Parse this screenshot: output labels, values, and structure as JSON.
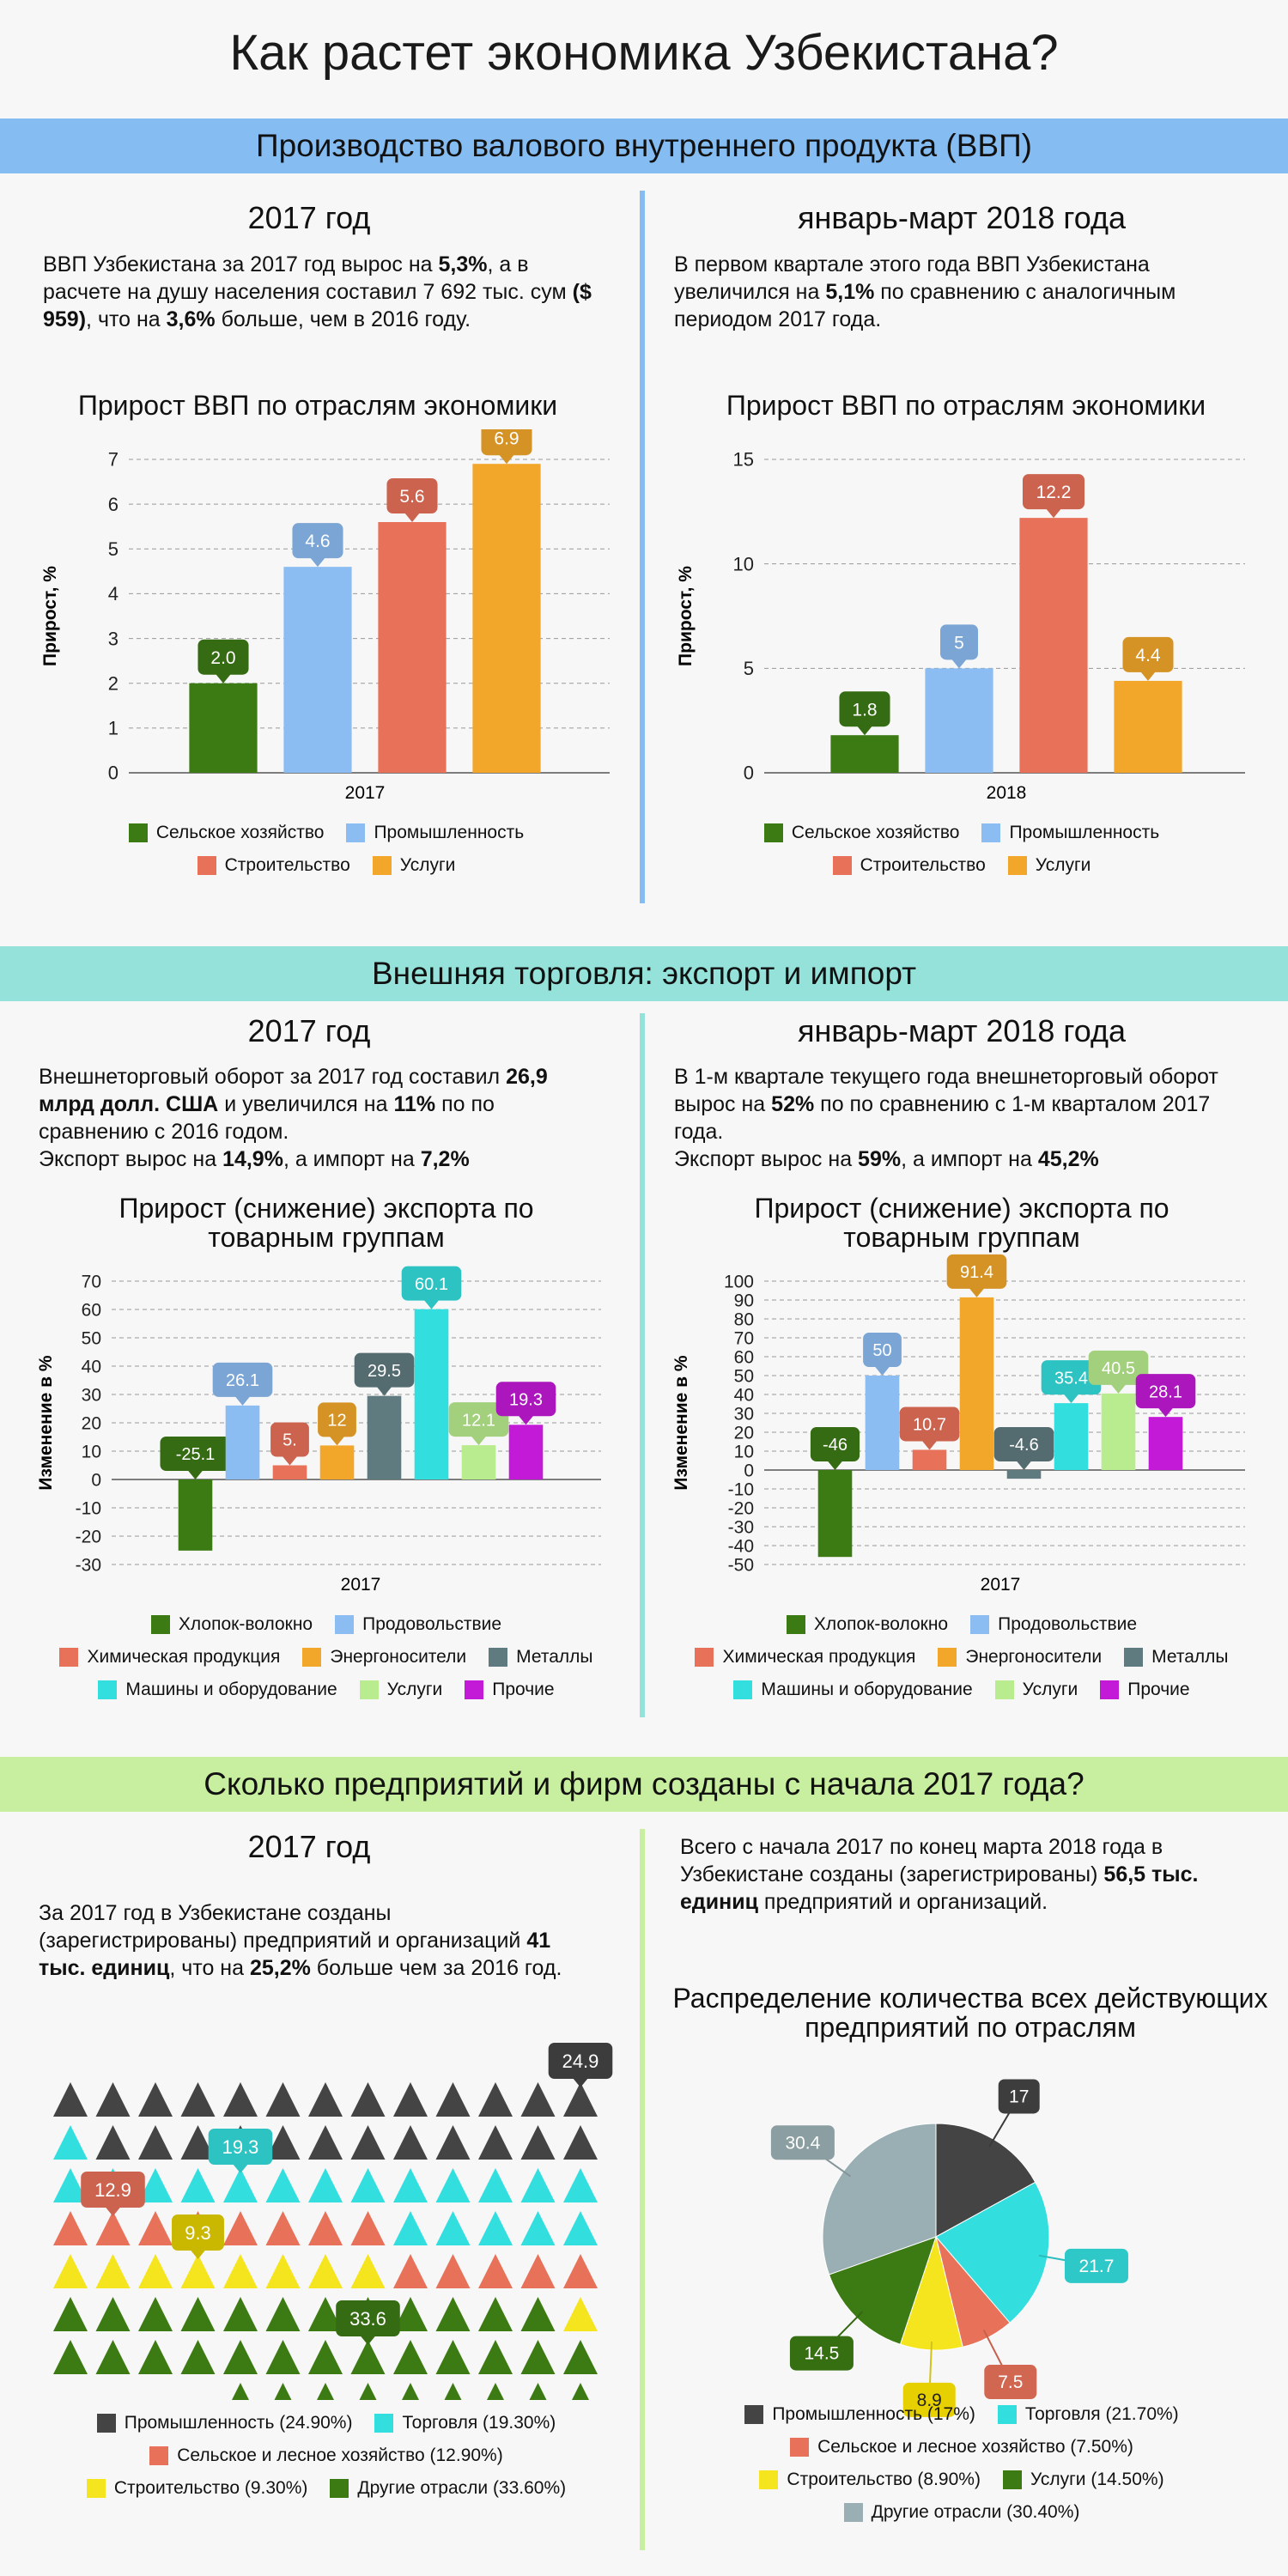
{
  "title": "Как растет экономика Узбекистана?",
  "colors": {
    "agri": "#3c7a14",
    "industry": "#8bbcf2",
    "construction": "#e8715a",
    "services": "#f2a72a",
    "cotton": "#3c7a14",
    "food": "#8bbcf2",
    "chem": "#e8715a",
    "energy": "#f2a72a",
    "metals": "#607b7f",
    "machines": "#33dede",
    "serv2": "#b9ec8e",
    "other": "#c21ad6",
    "dark": "#444444",
    "teal": "#33dede",
    "yellow": "#f5e51f"
  },
  "section1": {
    "header": "Производство валового внутреннего продукта (ВВП)",
    "left": {
      "year_title": "2017 год",
      "p1": "ВВП Узбекистана за 2017 год вырос на ",
      "b1": "5,3%",
      "p2": ", а в расчете на душу населения составил 7 692 тыс. сум ",
      "b2": "($ 959)",
      "p3": ", что на ",
      "b3": "3,6%",
      "p4": " больше, чем в 2016 году.",
      "chart_title": "Прирост ВВП по отраслям экономики"
    },
    "right": {
      "year_title": "январь-март 2018 года",
      "p1": "В первом квартале этого года ВВП Узбекистана увеличился на ",
      "b1": "5,1%",
      "p2": " по сравнению с аналогичным периодом 2017 года.",
      "chart_title": "Прирост ВВП по отраслям экономики"
    },
    "legend": [
      "Сельское хозяйство",
      "Промышленность",
      "Строительство",
      "Услуги"
    ]
  },
  "section2": {
    "header": "Внешняя торговля: экспорт и импорт",
    "left": {
      "year_title": "2017 год",
      "p1": "Внешнеторговый оборот за 2017 год составил ",
      "b1": "26,9 млрд долл. США",
      "p2": " и увеличился на ",
      "b2": "11%",
      "p3": " по по сравнению с 2016 годом.",
      "p4": "Экспорт вырос на ",
      "b4": "14,9%",
      "p5": ", а импорт на ",
      "b5": "7,2%",
      "chart_title": "Прирост (снижение) экспорта по товарным группам"
    },
    "right": {
      "year_title": "январь-март 2018 года",
      "p1": "В 1-м квартале текущего года внешнеторговый оборот вырос на ",
      "b1": "52%",
      "p2": " по по сравнению с 1-м кварталом 2017 года.",
      "p4": "Экспорт вырос на ",
      "b4": "59%",
      "p5": ", а импорт на ",
      "b5": "45,2%",
      "chart_title": "Прирост (снижение) экспорта по товарным группам"
    },
    "legend": [
      "Хлопок-волокно",
      "Продовольствие",
      "Химическая продукция",
      "Энергоносители",
      "Металлы",
      "Машины и оборудование",
      "Услуги",
      "Прочие"
    ]
  },
  "section3": {
    "header": "Сколько предприятий и фирм созданы с начала 2017 года?",
    "left": {
      "year_title": "2017 год",
      "p1": "За 2017 год в Узбекистане созданы (зарегистрированы) предприятий и организаций ",
      "b1": "41 тыс. единиц",
      "p2": ", что на ",
      "b2": "25,2%",
      "p3": " больше чем за 2016 год.",
      "legend": [
        "Промышленность (24.90%)",
        "Торговля (19.30%)",
        "Сельское и лесное хозяйство (12.90%)",
        "Строительство (9.30%)",
        "Другие отрасли (33.60%)"
      ]
    },
    "right": {
      "p1": "Всего с начала 2017 по конец марта 2018 года в Узбекистане созданы (зарегистрированы) ",
      "b1": "56,5 тыс. единиц",
      "p2": " предприятий и организаций.",
      "chart_title": "Распределение количества всех действующих предприятий по отраслям",
      "legend": [
        "Промышленность (17%)",
        "Торговля (21.70%)",
        "Сельское и лесное хозяйство (7.50%)",
        "Строительство (8.90%)",
        "Услуги (14.50%)",
        "Другие отрасли (30.40%)"
      ]
    }
  },
  "chart_data": [
    {
      "type": "bar",
      "title": "Прирост ВВП по отраслям экономики",
      "ylabel": "Прирост, %",
      "categories": [
        "2017"
      ],
      "ylim": [
        0,
        7
      ],
      "yticks": [
        0,
        1,
        2,
        3,
        4,
        5,
        6,
        7
      ],
      "series": [
        {
          "name": "Сельское хозяйство",
          "values": [
            2.0
          ],
          "label": "2.0"
        },
        {
          "name": "Промышленность",
          "values": [
            4.6
          ],
          "label": "4.6"
        },
        {
          "name": "Строительство",
          "values": [
            5.6
          ],
          "label": "5.6"
        },
        {
          "name": "Услуги",
          "values": [
            6.9
          ],
          "label": "6.9"
        }
      ]
    },
    {
      "type": "bar",
      "title": "Прирост ВВП по отраслям экономики",
      "ylabel": "Прирост, %",
      "categories": [
        "2018"
      ],
      "ylim": [
        0,
        15
      ],
      "yticks": [
        0,
        5,
        10,
        15
      ],
      "series": [
        {
          "name": "Сельское хозяйство",
          "values": [
            1.8
          ],
          "label": "1.8"
        },
        {
          "name": "Промышленность",
          "values": [
            5
          ],
          "label": "5"
        },
        {
          "name": "Строительство",
          "values": [
            12.2
          ],
          "label": "12.2"
        },
        {
          "name": "Услуги",
          "values": [
            4.4
          ],
          "label": "4.4"
        }
      ]
    },
    {
      "type": "bar",
      "title": "Прирост (снижение) экспорта по товарным группам",
      "ylabel": "Изменение в %",
      "categories": [
        "2017"
      ],
      "ylim": [
        -30,
        70
      ],
      "yticks": [
        -30,
        -20,
        -10,
        0,
        10,
        20,
        30,
        40,
        50,
        60,
        70
      ],
      "series": [
        {
          "name": "Хлопок-волокно",
          "values": [
            -25.1
          ],
          "label": "-25.1"
        },
        {
          "name": "Продовольствие",
          "values": [
            26.1
          ],
          "label": "26.1"
        },
        {
          "name": "Химическая продукция",
          "values": [
            5
          ],
          "label": "5."
        },
        {
          "name": "Энергоносители",
          "values": [
            12
          ],
          "label": "12"
        },
        {
          "name": "Металлы",
          "values": [
            29.5
          ],
          "label": "29.5"
        },
        {
          "name": "Машины и оборудование",
          "values": [
            60.1
          ],
          "label": "60.1"
        },
        {
          "name": "Услуги",
          "values": [
            12.1
          ],
          "label": "12.1"
        },
        {
          "name": "Прочие",
          "values": [
            19.3
          ],
          "label": "19.3"
        }
      ]
    },
    {
      "type": "bar",
      "title": "Прирост (снижение) экспорта по товарным группам",
      "ylabel": "Изменение в %",
      "categories": [
        "2017"
      ],
      "ylim": [
        -50,
        100
      ],
      "yticks": [
        -50,
        -40,
        -30,
        -20,
        -10,
        0,
        10,
        20,
        30,
        40,
        50,
        60,
        70,
        80,
        90,
        100
      ],
      "series": [
        {
          "name": "Хлопок-волокно",
          "values": [
            -46
          ],
          "label": "-46"
        },
        {
          "name": "Продовольствие",
          "values": [
            50
          ],
          "label": "50"
        },
        {
          "name": "Химическая продукция",
          "values": [
            10.7
          ],
          "label": "10.7"
        },
        {
          "name": "Энергоносители",
          "values": [
            91.4
          ],
          "label": "91.4"
        },
        {
          "name": "Металлы",
          "values": [
            -4.6
          ],
          "label": "-4.6"
        },
        {
          "name": "Машины и оборудование",
          "values": [
            35.4
          ],
          "label": "35.4"
        },
        {
          "name": "Услуги",
          "values": [
            40.5
          ],
          "label": "40.5"
        },
        {
          "name": "Прочие",
          "values": [
            28.1
          ],
          "label": "28.1"
        }
      ]
    },
    {
      "type": "pictogram",
      "title": "",
      "categories": [
        "Промышленность",
        "Торговля",
        "Сельское и лесное хозяйство",
        "Строительство",
        "Другие отрасли"
      ],
      "values": [
        24.9,
        19.3,
        12.9,
        9.3,
        33.6
      ],
      "labels": [
        "24.9",
        "19.3",
        "12.9",
        "9.3",
        "33.6"
      ]
    },
    {
      "type": "pie",
      "title": "Распределение количества всех действующих предприятий по отраслям",
      "categories": [
        "Промышленность",
        "Торговля",
        "Сельское и лесное хозяйство",
        "Строительство",
        "Услуги",
        "Другие отрасли"
      ],
      "values": [
        17,
        21.7,
        7.5,
        8.9,
        14.5,
        30.4
      ],
      "labels": [
        "17",
        "21.7",
        "7.5",
        "8.9",
        "14.5",
        "30.4"
      ]
    }
  ]
}
